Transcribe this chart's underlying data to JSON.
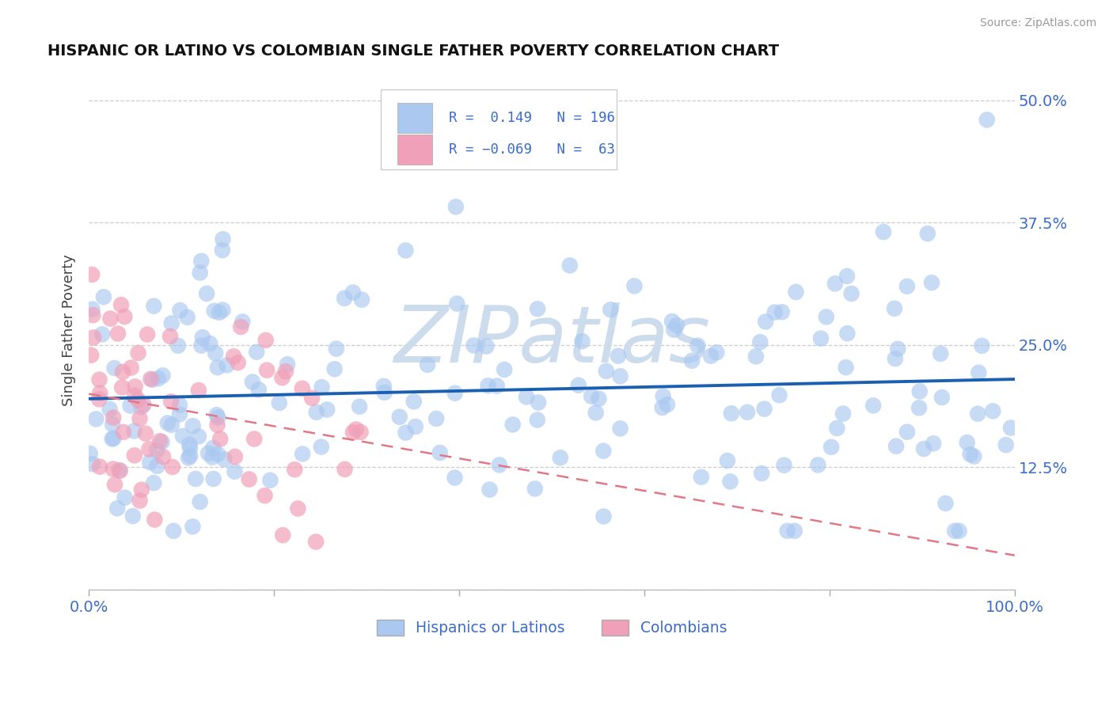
{
  "title": "HISPANIC OR LATINO VS COLOMBIAN SINGLE FATHER POVERTY CORRELATION CHART",
  "source": "Source: ZipAtlas.com",
  "ylabel": "Single Father Poverty",
  "r_blue": 0.149,
  "n_blue": 196,
  "r_pink": -0.069,
  "n_pink": 63,
  "blue_color": "#aac8f0",
  "pink_color": "#f0a0b8",
  "blue_line_color": "#1a5fb0",
  "pink_line_color": "#e07888",
  "legend_label_blue": "Hispanics or Latinos",
  "legend_label_pink": "Colombians",
  "watermark": "ZIPatlas",
  "watermark_color": "#ccdcec",
  "background_color": "#ffffff",
  "xlim": [
    0.0,
    1.0
  ],
  "ylim": [
    0.0,
    0.53
  ],
  "y_tick_positions": [
    0.0,
    0.125,
    0.25,
    0.375,
    0.5
  ],
  "y_tick_labels": [
    "",
    "12.5%",
    "25.0%",
    "37.5%",
    "50.0%"
  ],
  "x_tick_positions": [
    0.0,
    0.2,
    0.4,
    0.6,
    0.8,
    1.0
  ],
  "x_tick_labels": [
    "0.0%",
    "",
    "",
    "",
    "",
    "100.0%"
  ],
  "blue_line_x0": 0.0,
  "blue_line_y0": 0.195,
  "blue_line_x1": 1.0,
  "blue_line_y1": 0.215,
  "pink_line_x0": 0.0,
  "pink_line_y0": 0.2,
  "pink_line_x1": 1.0,
  "pink_line_y1": 0.035
}
